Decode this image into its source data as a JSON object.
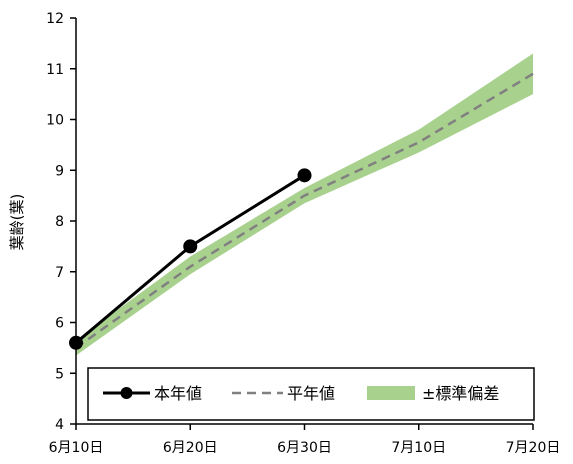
{
  "chart_data": {
    "type": "line",
    "ylabel": "葉齢(葉)",
    "ylim": [
      4,
      12
    ],
    "yticks": [
      4,
      5,
      6,
      7,
      8,
      9,
      10,
      11,
      12
    ],
    "xticks": [
      "6月10日",
      "6月20日",
      "6月30日",
      "7月10日",
      "7月20日"
    ],
    "legend_position": "bottom-inside",
    "grid": false,
    "colors": {
      "current": "#000000",
      "average": "#808080",
      "band": "#a9d18e"
    },
    "series": [
      {
        "name": "本年値",
        "x": [
          "6月10日",
          "6月20日",
          "6月30日"
        ],
        "values": [
          5.6,
          7.5,
          8.9
        ],
        "style": "solid-marker"
      },
      {
        "name": "平年値",
        "x": [
          "6月10日",
          "6月20日",
          "6月30日",
          "7月10日",
          "7月20日"
        ],
        "values": [
          5.5,
          7.1,
          8.5,
          9.55,
          10.9
        ],
        "style": "dashed"
      }
    ],
    "band": {
      "name": "±標準偏差",
      "x": [
        "6月10日",
        "6月20日",
        "6月30日",
        "7月10日",
        "7月20日"
      ],
      "upper": [
        5.65,
        7.3,
        8.65,
        9.8,
        11.3
      ],
      "lower": [
        5.35,
        6.95,
        8.35,
        9.35,
        10.5
      ]
    }
  }
}
